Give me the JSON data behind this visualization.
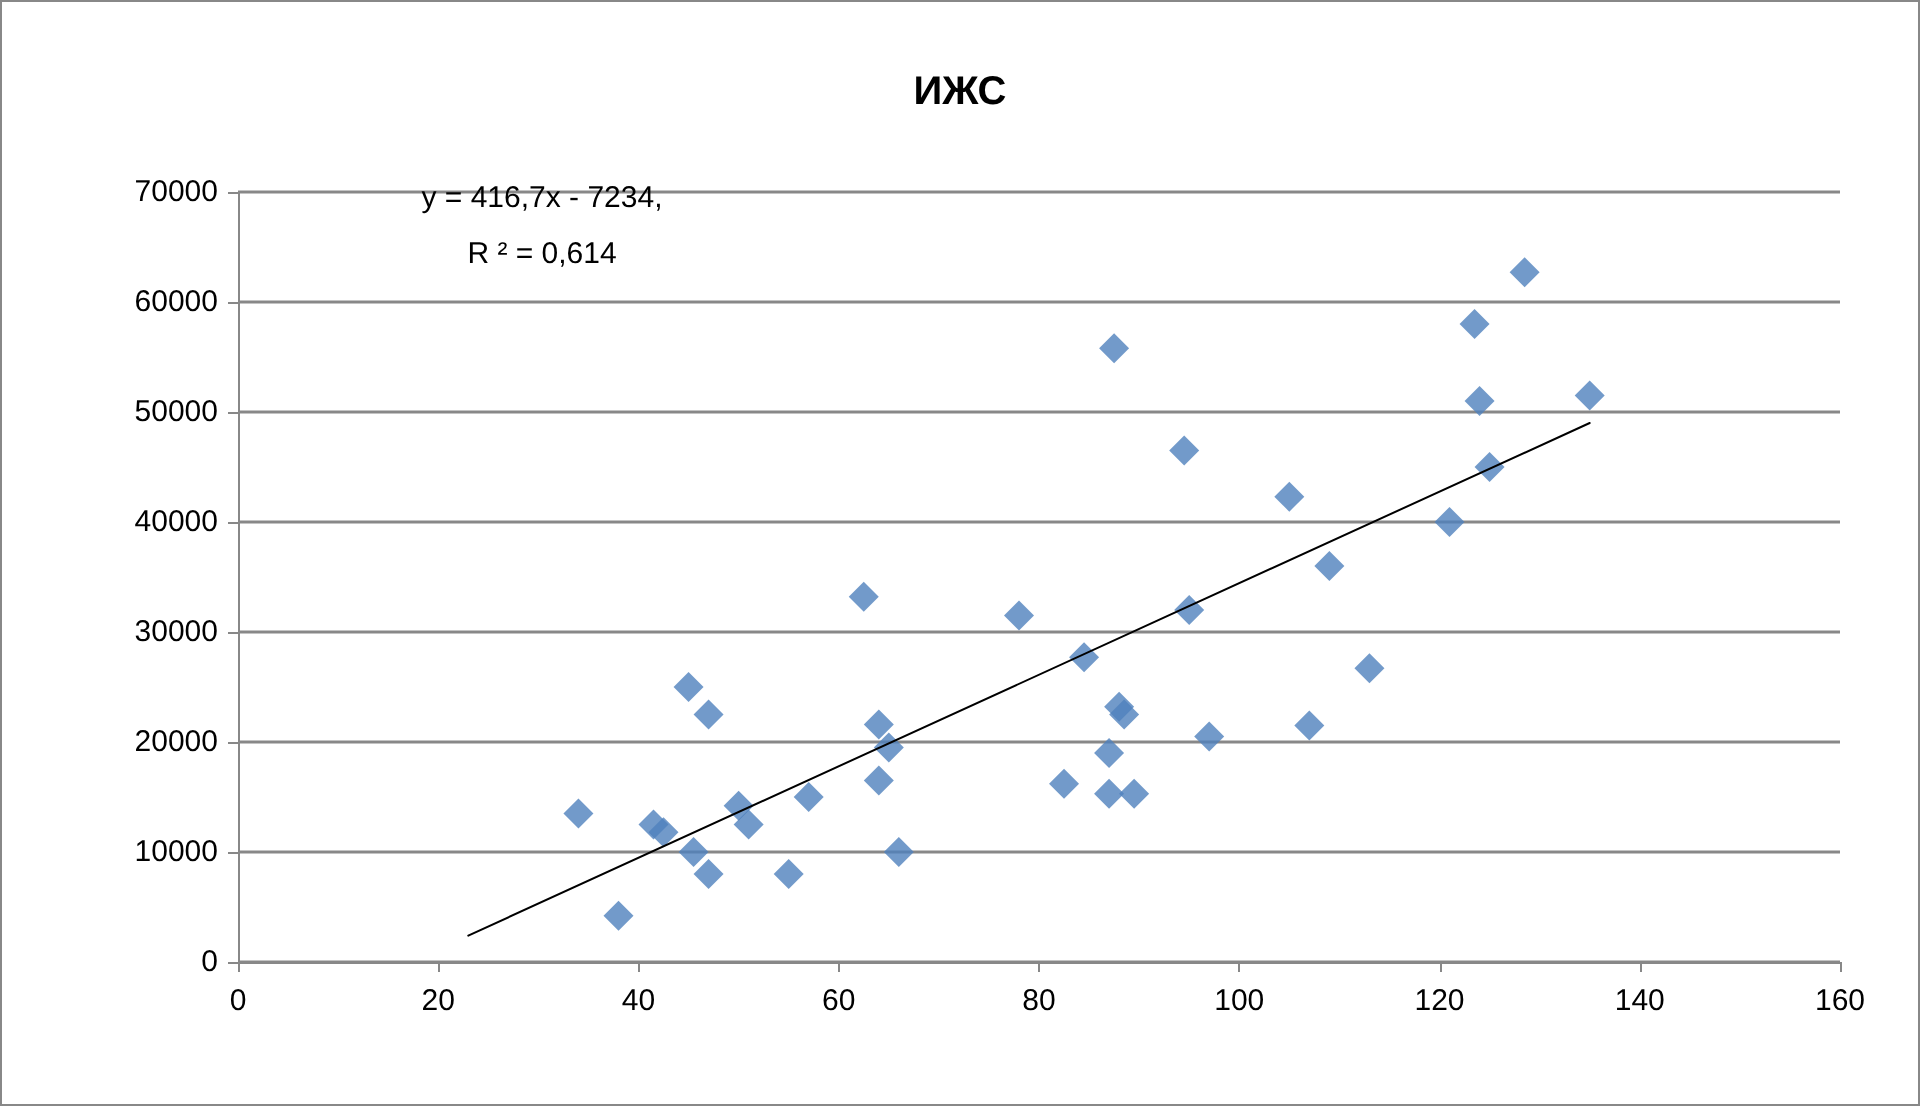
{
  "chart_data": {
    "type": "scatter",
    "title": "ИЖС",
    "annotations": [
      "y = 416,7x - 7234,\nR ² = 0,614"
    ],
    "xlim": [
      0,
      160
    ],
    "xticks": [
      0,
      20,
      40,
      60,
      80,
      100,
      120,
      140,
      160
    ],
    "ylim": [
      0,
      70000
    ],
    "yticks": [
      0,
      10000,
      20000,
      30000,
      40000,
      50000,
      60000,
      70000
    ],
    "grid": "y",
    "marker": "diamond",
    "series": [
      {
        "type": "scatter",
        "color": "#4f81bd",
        "x": [
          34,
          38,
          41.5,
          42.5,
          45,
          45.5,
          47,
          47,
          50,
          51,
          55,
          57,
          62.5,
          64,
          64,
          65,
          66,
          78,
          82.5,
          84.5,
          87,
          87,
          87.5,
          88,
          88.5,
          89.5,
          94.5,
          95,
          97,
          105,
          107,
          109,
          113,
          121,
          123.5,
          124,
          125,
          128.5,
          135
        ],
        "values": [
          13500,
          4200,
          12500,
          11800,
          25000,
          10000,
          22500,
          8000,
          14200,
          12500,
          8000,
          15000,
          33200,
          21600,
          16500,
          19500,
          10000,
          31500,
          16200,
          27700,
          15300,
          19000,
          55800,
          23200,
          22500,
          15300,
          46500,
          32000,
          20500,
          42300,
          21500,
          36000,
          26700,
          40000,
          58000,
          51000,
          45000,
          62700,
          51500
        ]
      },
      {
        "type": "line",
        "color": "#000000",
        "marker": "none",
        "line_style": "solid",
        "x": [
          23,
          135
        ],
        "values": [
          2400,
          49000
        ]
      }
    ]
  }
}
